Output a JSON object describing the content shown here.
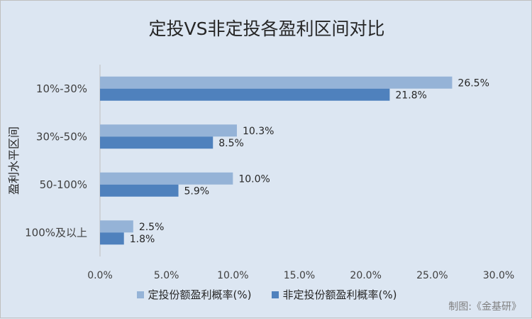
{
  "chart_data": {
    "type": "bar",
    "orientation": "horizontal",
    "title": "定投VS非定投各盈利区间对比",
    "ylabel": "盈利水平区间",
    "xlabel": "",
    "categories": [
      "10%-30%",
      "30%-50%",
      "50-100%",
      "100%及以上"
    ],
    "series": [
      {
        "name": "定投份额盈利概率(%)",
        "color": "#95b3d7",
        "values": [
          26.5,
          10.3,
          10.0,
          2.5
        ]
      },
      {
        "name": "非定投份额盈利概率(%)",
        "color": "#4f81bd",
        "values": [
          21.8,
          8.5,
          5.9,
          1.8
        ]
      }
    ],
    "xlim": [
      0,
      30
    ],
    "xticks": [
      0,
      5,
      10,
      15,
      20,
      25,
      30
    ],
    "xtick_labels": [
      "0.0%",
      "5.0%",
      "10.0%",
      "15.0%",
      "20.0%",
      "25.0%",
      "30.0%"
    ],
    "data_label_suffix": "%",
    "legend_position": "bottom",
    "grid": false
  },
  "credit": "制图:《金基研》"
}
